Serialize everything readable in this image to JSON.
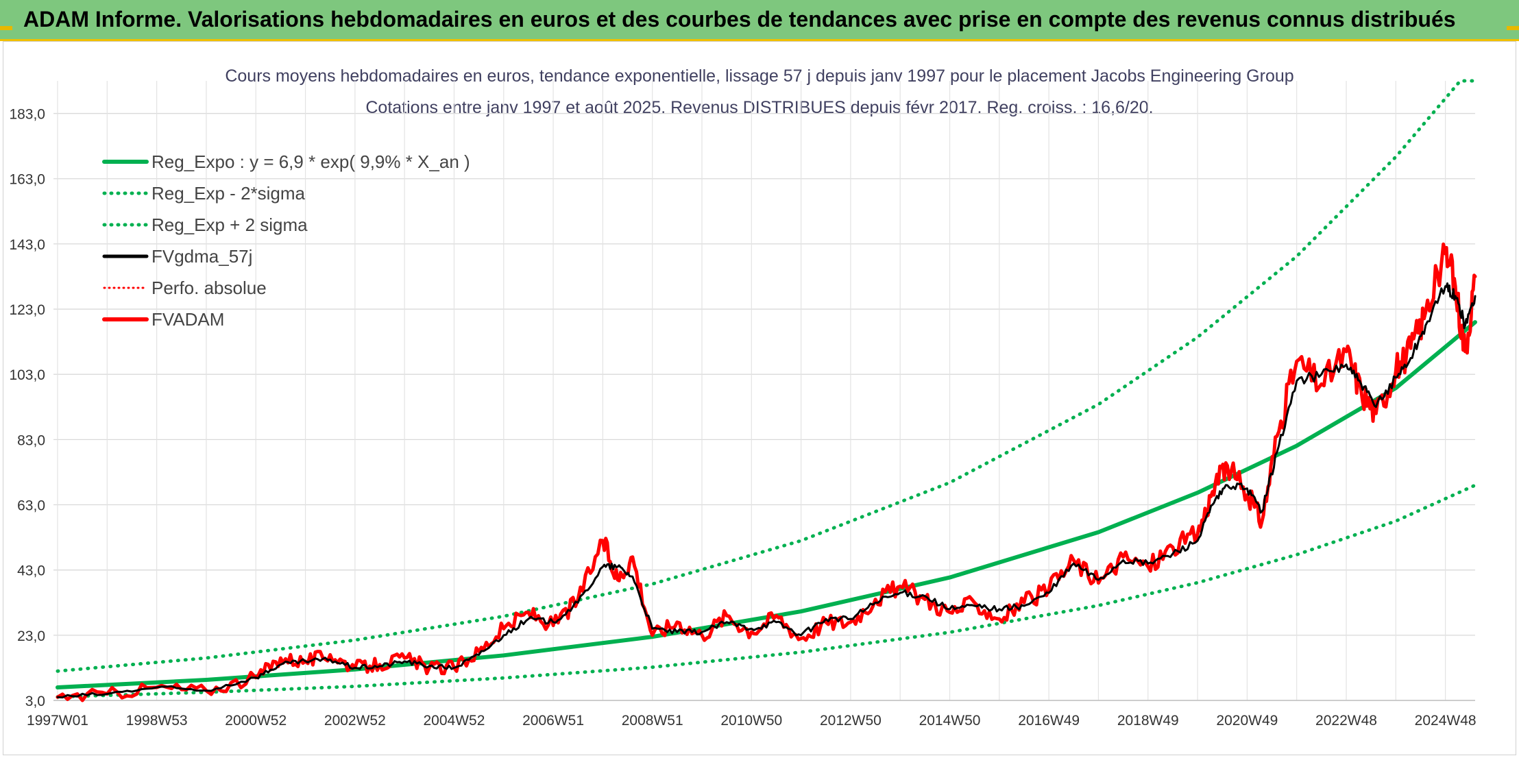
{
  "banner": {
    "title": "ADAM Informe. Valorisations hebdomadaires en euros et des courbes de tendances avec prise en compte des revenus connus distribués"
  },
  "colors": {
    "banner_bg": "#7ec77e",
    "trend_green": "#00b050",
    "gdma_black": "#000000",
    "adam_red": "#ff0000"
  },
  "chart_data": {
    "type": "line",
    "title": "Cours moyens hebdomadaires en euros, tendance exponentielle, lissage 57 j depuis janv 1997 pour le placement Jacobs Engineering Group",
    "subtitle": "Cotations entre janv 1997 et août 2025. Revenus DISTRIBUES depuis févr 2017. Reg. croiss. : 16,6/20.",
    "xlabel": "",
    "ylabel": "",
    "x_range": [
      1997.0,
      2025.6
    ],
    "ylim": [
      3,
      193
    ],
    "y_ticks": [
      "3,0",
      "23,0",
      "43,0",
      "63,0",
      "83,0",
      "103,0",
      "123,0",
      "143,0",
      "163,0",
      "183,0"
    ],
    "x_ticks": [
      {
        "label": "1997W01",
        "x": 1997.0
      },
      {
        "label": "1998W53",
        "x": 1999.0
      },
      {
        "label": "2000W52",
        "x": 2001.0
      },
      {
        "label": "2002W52",
        "x": 2003.0
      },
      {
        "label": "2004W52",
        "x": 2005.0
      },
      {
        "label": "2006W51",
        "x": 2007.0
      },
      {
        "label": "2008W51",
        "x": 2009.0
      },
      {
        "label": "2010W50",
        "x": 2011.0
      },
      {
        "label": "2012W50",
        "x": 2013.0
      },
      {
        "label": "2014W50",
        "x": 2015.0
      },
      {
        "label": "2016W49",
        "x": 2017.0
      },
      {
        "label": "2018W49",
        "x": 2019.0
      },
      {
        "label": "2020W49",
        "x": 2021.0
      },
      {
        "label": "2022W48",
        "x": 2023.0
      },
      {
        "label": "2024W48",
        "x": 2025.0
      }
    ],
    "grid": true,
    "legend_position": "top-left",
    "regression": {
      "a": 6.9,
      "rate": 0.099
    },
    "legend": [
      {
        "label": "Reg_Expo : y = 6,9 * exp( 9,9% *  X_an )",
        "color": "#00b050",
        "style": "solid"
      },
      {
        "label": "Reg_Exp - 2*sigma",
        "color": "#00b050",
        "style": "dotted"
      },
      {
        "label": "Reg_Exp + 2 sigma",
        "color": "#00b050",
        "style": "dotted"
      },
      {
        "label": "FVgdma_57j",
        "color": "#000000",
        "style": "solid"
      },
      {
        "label": "Perfo. absolue",
        "color": "#ff0000",
        "style": "dotted"
      },
      {
        "label": "FVADAM",
        "color": "#ff0000",
        "style": "solid"
      }
    ],
    "series": [
      {
        "name": "Reg_Expo : y = 6,9 * exp( 9,9% *  X_an )",
        "x": [
          1997.0,
          2000.0,
          2003.0,
          2006.0,
          2009.0,
          2012.0,
          2015.0,
          2018.0,
          2020.0,
          2022.0,
          2024.0,
          2025.6
        ],
        "values": [
          7.0,
          9.3,
          12.5,
          16.8,
          22.5,
          30.3,
          40.7,
          54.6,
          66.7,
          81.1,
          98.8,
          119.0
        ]
      },
      {
        "name": "Reg_Exp - 2*sigma",
        "x": [
          1997.0,
          2000.0,
          2003.0,
          2006.0,
          2009.0,
          2012.0,
          2015.0,
          2018.0,
          2020.0,
          2022.0,
          2024.0,
          2025.6
        ],
        "values": [
          4.1,
          5.5,
          7.3,
          9.9,
          13.2,
          17.8,
          23.9,
          32.1,
          39.1,
          47.7,
          58.0,
          69.0
        ]
      },
      {
        "name": "Reg_Exp + 2 sigma",
        "x": [
          1997.0,
          2000.0,
          2003.0,
          2006.0,
          2009.0,
          2012.0,
          2015.0,
          2018.0,
          2020.0,
          2022.0,
          2024.0,
          2025.3,
          2025.6
        ],
        "values": [
          12.0,
          16.0,
          21.5,
          28.8,
          38.7,
          52.0,
          69.8,
          93.8,
          114.4,
          139.2,
          169.7,
          193.0,
          193.0
        ]
      },
      {
        "name": "FVgdma_57j",
        "x": [
          1997.0,
          1998.0,
          1999.0,
          2000.0,
          2001.0,
          2001.5,
          2002.0,
          2002.5,
          2003.0,
          2003.5,
          2004.0,
          2004.5,
          2005.0,
          2005.5,
          2006.0,
          2006.5,
          2007.0,
          2007.5,
          2008.0,
          2008.3,
          2008.6,
          2009.0,
          2009.5,
          2010.0,
          2010.5,
          2011.0,
          2011.5,
          2012.0,
          2012.5,
          2013.0,
          2013.5,
          2014.0,
          2014.5,
          2015.0,
          2015.5,
          2016.0,
          2016.5,
          2017.0,
          2017.5,
          2018.0,
          2018.5,
          2019.0,
          2019.5,
          2020.0,
          2020.3,
          2020.6,
          2021.0,
          2021.3,
          2021.6,
          2022.0,
          2022.5,
          2023.0,
          2023.3,
          2023.6,
          2024.0,
          2024.3,
          2024.6,
          2025.0,
          2025.2,
          2025.4,
          2025.6
        ],
        "values": [
          4.0,
          5.0,
          7.0,
          6.0,
          10.0,
          14.0,
          15.0,
          15.5,
          13.0,
          13.5,
          15.0,
          13.5,
          13.0,
          17.0,
          23.0,
          28.0,
          27.0,
          33.0,
          44.0,
          44.0,
          41.0,
          25.0,
          24.0,
          24.0,
          27.0,
          25.0,
          27.0,
          23.0,
          28.0,
          28.0,
          33.0,
          36.0,
          35.0,
          31.0,
          32.0,
          31.0,
          32.0,
          36.0,
          45.0,
          40.0,
          46.0,
          45.0,
          48.0,
          52.0,
          63.0,
          69.0,
          68.0,
          61.0,
          79.0,
          101.0,
          103.0,
          106.0,
          100.0,
          93.0,
          102.0,
          108.0,
          118.0,
          130.0,
          127.0,
          118.0,
          127.0
        ]
      },
      {
        "name": "Perfo. absolue",
        "x": [
          1997.0,
          1998.0,
          1999.0,
          2000.0,
          2001.0,
          2002.0,
          2003.0,
          2004.0,
          2005.0,
          2006.0,
          2007.0,
          2008.0,
          2009.0,
          2010.0,
          2011.0,
          2012.0,
          2013.0,
          2014.0,
          2015.0,
          2016.0,
          2017.0,
          2018.0,
          2019.0,
          2020.0,
          2021.0,
          2022.0,
          2023.0,
          2024.0,
          2025.0,
          2025.6
        ],
        "values": [
          4.0,
          5.0,
          7.0,
          6.0,
          10.0,
          15.0,
          13.0,
          15.0,
          13.0,
          23.0,
          27.0,
          44.0,
          25.0,
          24.0,
          25.0,
          23.0,
          28.0,
          36.0,
          31.0,
          31.0,
          36.0,
          40.0,
          45.0,
          52.0,
          68.0,
          101.0,
          106.0,
          102.0,
          130.0,
          127.0
        ]
      },
      {
        "name": "FVADAM",
        "x": [
          1997.0,
          1998.0,
          1999.0,
          2000.0,
          2001.0,
          2001.5,
          2002.0,
          2002.5,
          2003.0,
          2003.5,
          2004.0,
          2004.5,
          2005.0,
          2005.5,
          2006.0,
          2006.5,
          2007.0,
          2007.5,
          2008.0,
          2008.3,
          2008.6,
          2009.0,
          2009.5,
          2010.0,
          2010.5,
          2011.0,
          2011.5,
          2012.0,
          2012.5,
          2013.0,
          2013.5,
          2014.0,
          2014.5,
          2015.0,
          2015.5,
          2016.0,
          2016.5,
          2017.0,
          2017.5,
          2018.0,
          2018.5,
          2019.0,
          2019.5,
          2020.0,
          2020.3,
          2020.6,
          2021.0,
          2021.3,
          2021.6,
          2022.0,
          2022.5,
          2023.0,
          2023.3,
          2023.6,
          2024.0,
          2024.3,
          2024.6,
          2025.0,
          2025.2,
          2025.4,
          2025.6
        ],
        "values": [
          4.0,
          5.0,
          7.0,
          6.0,
          10.0,
          16.0,
          15.0,
          17.0,
          13.0,
          14.0,
          16.0,
          13.0,
          13.0,
          18.0,
          25.0,
          30.0,
          26.0,
          34.0,
          52.0,
          40.0,
          47.0,
          23.0,
          27.0,
          23.0,
          29.0,
          24.0,
          29.0,
          22.0,
          27.0,
          27.0,
          34.0,
          38.0,
          34.0,
          30.0,
          33.0,
          28.0,
          33.0,
          37.0,
          46.0,
          39.0,
          47.0,
          44.0,
          50.0,
          54.0,
          67.0,
          75.0,
          66.0,
          58.0,
          84.0,
          107.0,
          100.0,
          110.0,
          98.0,
          91.0,
          104.0,
          111.0,
          122.0,
          140.0,
          130.0,
          110.0,
          133.0
        ]
      }
    ]
  }
}
